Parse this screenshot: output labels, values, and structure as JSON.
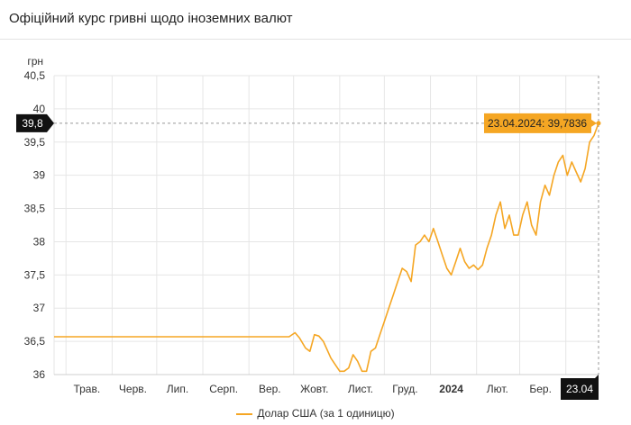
{
  "header": {
    "title": "Офіційний курс гривні щодо іноземних валют"
  },
  "chart_data": {
    "type": "line",
    "ylabel": "грн",
    "ylim": [
      36,
      40.5
    ],
    "yticks": [
      "36",
      "36,5",
      "37",
      "37,5",
      "38",
      "38,5",
      "39",
      "39,5",
      "40",
      "40,5"
    ],
    "x_tick_labels": [
      "Трав.",
      "Черв.",
      "Лип.",
      "Серп.",
      "Вер.",
      "Жовт.",
      "Лист.",
      "Груд.",
      "2024",
      "Лют.",
      "Бер."
    ],
    "crosshair": {
      "y_label": "39,8",
      "x_label": "23.04",
      "y_value": 39.7836
    },
    "tooltip": "23.04.2024: 39,7836",
    "grid": true,
    "legend_position": "bottom",
    "series": [
      {
        "name": "Долар США (за 1 одиницю)",
        "color": "#f5a623",
        "x": [
          "2023-04-23",
          "2023-05-01",
          "2023-06-01",
          "2023-07-01",
          "2023-08-01",
          "2023-09-01",
          "2023-09-28",
          "2023-10-02",
          "2023-10-05",
          "2023-10-09",
          "2023-10-12",
          "2023-10-15",
          "2023-10-18",
          "2023-10-21",
          "2023-10-24",
          "2023-10-26",
          "2023-10-29",
          "2023-11-01",
          "2023-11-04",
          "2023-11-07",
          "2023-11-10",
          "2023-11-13",
          "2023-11-16",
          "2023-11-19",
          "2023-11-22",
          "2023-11-25",
          "2023-11-28",
          "2023-12-01",
          "2023-12-04",
          "2023-12-07",
          "2023-12-10",
          "2023-12-13",
          "2023-12-16",
          "2023-12-19",
          "2023-12-22",
          "2023-12-25",
          "2023-12-28",
          "2023-12-31",
          "2024-01-03",
          "2024-01-06",
          "2024-01-09",
          "2024-01-12",
          "2024-01-15",
          "2024-01-18",
          "2024-01-21",
          "2024-01-24",
          "2024-01-27",
          "2024-01-30",
          "2024-02-02",
          "2024-02-05",
          "2024-02-08",
          "2024-02-11",
          "2024-02-14",
          "2024-02-17",
          "2024-02-20",
          "2024-02-23",
          "2024-02-26",
          "2024-02-29",
          "2024-03-03",
          "2024-03-06",
          "2024-03-09",
          "2024-03-12",
          "2024-03-15",
          "2024-03-18",
          "2024-03-21",
          "2024-03-24",
          "2024-03-27",
          "2024-03-30",
          "2024-04-02",
          "2024-04-05",
          "2024-04-08",
          "2024-04-11",
          "2024-04-14",
          "2024-04-17",
          "2024-04-20",
          "2024-04-23"
        ],
        "values": [
          36.5686,
          36.5686,
          36.5686,
          36.5686,
          36.5686,
          36.5686,
          36.5686,
          36.63,
          36.55,
          36.4,
          36.35,
          36.6,
          36.58,
          36.5,
          36.35,
          36.25,
          36.15,
          36.05,
          36.05,
          36.1,
          36.3,
          36.2,
          36.05,
          36.05,
          36.35,
          36.4,
          36.6,
          36.8,
          37.0,
          37.2,
          37.4,
          37.6,
          37.55,
          37.4,
          37.95,
          38.0,
          38.1,
          38.0,
          38.2,
          38.0,
          37.8,
          37.6,
          37.5,
          37.7,
          37.9,
          37.7,
          37.6,
          37.65,
          37.58,
          37.65,
          37.9,
          38.1,
          38.4,
          38.6,
          38.2,
          38.4,
          38.1,
          38.1,
          38.4,
          38.6,
          38.25,
          38.1,
          38.6,
          38.85,
          38.7,
          39.0,
          39.2,
          39.3,
          39.0,
          39.2,
          39.05,
          38.9,
          39.1,
          39.5,
          39.6,
          39.7836
        ]
      }
    ]
  }
}
